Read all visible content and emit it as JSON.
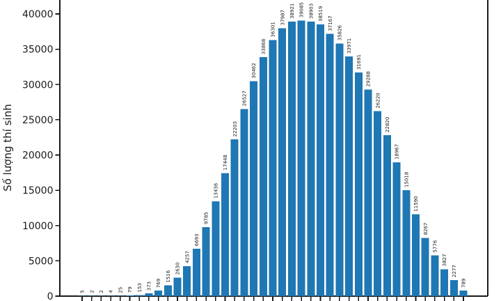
{
  "chart_data": {
    "type": "bar",
    "title": "",
    "xlabel": "",
    "ylabel": "Số lượng thí sinh",
    "bar_color": "#1f77b4",
    "text_color": "#1a1a1a",
    "values": [
      5,
      2,
      2,
      4,
      25,
      79,
      153,
      373,
      769,
      1516,
      2630,
      4257,
      6693,
      9785,
      13436,
      17448,
      22203,
      26527,
      30462,
      33868,
      36301,
      37987,
      38921,
      39085,
      38903,
      38519,
      37167,
      35826,
      33971,
      31691,
      29288,
      26220,
      22820,
      18967,
      15018,
      11590,
      8267,
      5776,
      3827,
      2277,
      789
    ],
    "bar_value_labels_rotated": true,
    "y_ticks": [
      0,
      5000,
      10000,
      15000,
      20000,
      25000,
      30000,
      35000,
      40000
    ],
    "ylim": [
      0,
      42000
    ],
    "grid": "off",
    "legend": "none",
    "x_tick_labels_visible": false
  }
}
